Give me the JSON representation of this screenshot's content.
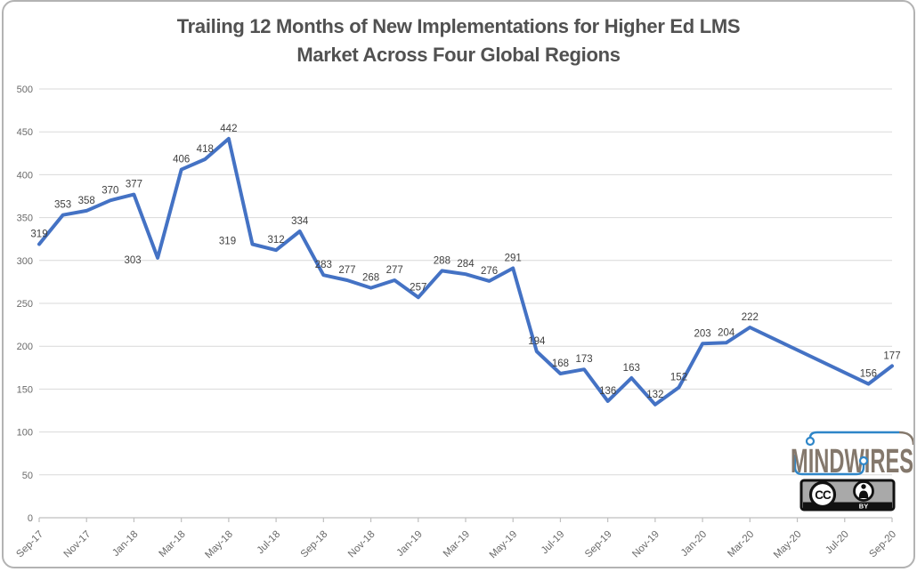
{
  "title": {
    "line1": "Trailing 12 Months of New Implementations for Higher Ed LMS",
    "line2": "Market Across Four Global Regions"
  },
  "chart_data": {
    "type": "line",
    "title": "Trailing 12 Months of New Implementations for Higher Ed LMS Market Across Four Global Regions",
    "x": [
      "Sep-17",
      "Oct-17",
      "Nov-17",
      "Dec-17",
      "Jan-18",
      "Feb-18",
      "Mar-18",
      "Apr-18",
      "May-18",
      "Jun-18",
      "Jul-18",
      "Aug-18",
      "Sep-18",
      "Oct-18",
      "Nov-18",
      "Dec-18",
      "Jan-19",
      "Feb-19",
      "Mar-19",
      "Apr-19",
      "May-19",
      "Jun-19",
      "Jul-19",
      "Aug-19",
      "Sep-19",
      "Oct-19",
      "Nov-19",
      "Dec-19",
      "Jan-20",
      "Feb-20",
      "Mar-20",
      "Apr-20",
      "May-20",
      "Jun-20",
      "Jul-20",
      "Aug-20",
      "Sep-20"
    ],
    "values": [
      319,
      353,
      358,
      370,
      377,
      303,
      406,
      418,
      442,
      319,
      312,
      334,
      283,
      277,
      268,
      277,
      257,
      288,
      284,
      276,
      291,
      194,
      168,
      173,
      136,
      163,
      132,
      152,
      203,
      204,
      222,
      null,
      null,
      null,
      null,
      156,
      177
    ],
    "ylim": [
      0,
      500
    ],
    "y_tick_step": 50,
    "x_tick_every": 2,
    "grid": "horizontal-only",
    "legend": "none",
    "data_labels": true,
    "label_offsets": {
      "5": {
        "dx": -28,
        "dy": 14
      },
      "9": {
        "dx": -28,
        "dy": 8
      }
    },
    "colors": {
      "line": "#4472C4",
      "grid": "#D9D9D9",
      "axis": "#BFBFBF",
      "data_label": "#404040",
      "tick_label": "#6a6a6a",
      "title": "#515151"
    }
  },
  "logo": {
    "text": "MINDWIRES",
    "text_color": "#84786C",
    "wire_color": "#2E86C8"
  },
  "cc_badge": {
    "cc_text": "CC",
    "license_text": "BY",
    "background": "#A9A9A9"
  }
}
